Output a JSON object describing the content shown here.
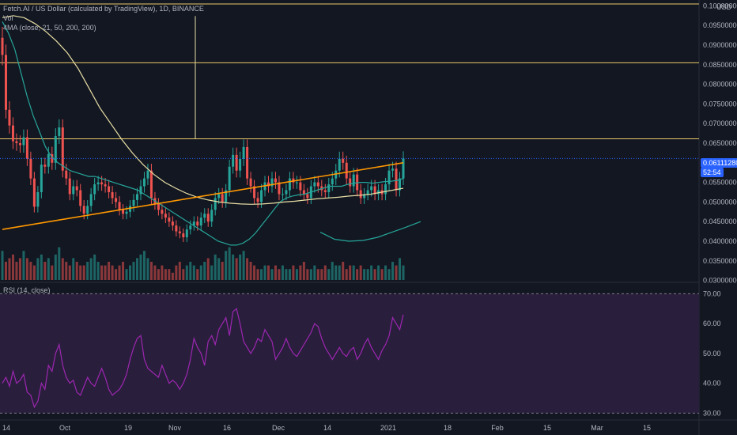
{
  "header": {
    "title": "Fetch.AI / US Dollar (calculated by TradingView), 1D, BINANCE",
    "vol_label": "Vol",
    "ma_label": "4MA (close, 21, 50, 200, 200)",
    "currency": "USD",
    "rsi_label": "RSI (14, close)"
  },
  "price_tag": {
    "value": "0.06111280",
    "countdown": "52:54",
    "color": "#2962ff"
  },
  "colors": {
    "up": "#26a69a",
    "down": "#ef5350",
    "hline": "#e8c96a",
    "ma21": "#26a69a",
    "ma50": "#e8dfa5",
    "ma200": "#ff9800",
    "rsi": "#9c27b0",
    "rsi_bg": "#2a1e3d"
  },
  "chart_data": [
    {
      "type": "candlestick",
      "title": "Fetch.AI / US Dollar (calculated by TradingView), 1D, BINANCE",
      "ylabel": "USD",
      "ylim": [
        0.0289,
        0.1015
      ],
      "y_ticks": [
        "0.03000000",
        "0.03500000",
        "0.04000000",
        "0.04500000",
        "0.05000000",
        "0.05500000",
        "0.06000000",
        "0.06500000",
        "0.07000000",
        "0.07500000",
        "0.08000000",
        "0.08500000",
        "0.09000000",
        "0.09500000",
        "0.10000000"
      ],
      "x_ticks": [
        "14",
        "Oct",
        "19",
        "Nov",
        "16",
        "Dec",
        "14",
        "2021",
        "18",
        "Feb",
        "15",
        "Mar",
        "15"
      ],
      "horizontal_levels": [
        0.1005,
        0.0855,
        0.0661
      ],
      "series": [
        {
          "name": "close",
          "values": [
            0.0875,
            0.0735,
            0.0695,
            0.0655,
            0.065,
            0.0645,
            0.0665,
            0.061,
            0.056,
            0.0488,
            0.0525,
            0.0595,
            0.059,
            0.0622,
            0.06,
            0.0668,
            0.069,
            0.058,
            0.056,
            0.052,
            0.054,
            0.053,
            0.049,
            0.047,
            0.049,
            0.052,
            0.0545,
            0.055,
            0.0545,
            0.054,
            0.0525,
            0.051,
            0.05,
            0.048,
            0.047,
            0.0475,
            0.049,
            0.0505,
            0.052,
            0.054,
            0.056,
            0.058,
            0.051,
            0.0495,
            0.048,
            0.047,
            0.046,
            0.045,
            0.044,
            0.0425,
            0.042,
            0.041,
            0.043,
            0.044,
            0.045,
            0.044,
            0.046,
            0.047,
            0.045,
            0.048,
            0.051,
            0.052,
            0.05,
            0.053,
            0.059,
            0.062,
            0.058,
            0.061,
            0.064,
            0.056,
            0.054,
            0.051,
            0.05,
            0.053,
            0.055,
            0.054,
            0.056,
            0.055,
            0.052,
            0.052,
            0.053,
            0.056,
            0.055,
            0.055,
            0.053,
            0.052,
            0.051,
            0.054,
            0.055,
            0.054,
            0.053,
            0.0525,
            0.0545,
            0.056,
            0.058,
            0.061,
            0.06,
            0.056,
            0.054,
            0.057,
            0.053,
            0.051,
            0.052,
            0.053,
            0.054,
            0.052,
            0.053,
            0.052,
            0.0545,
            0.058,
            0.0585,
            0.053,
            0.056,
            0.0611
          ]
        },
        {
          "name": "MA 21",
          "values": [
            0.096,
            0.093,
            0.089,
            0.083,
            0.077,
            0.072,
            0.068,
            0.064,
            0.0615,
            0.06,
            0.059,
            0.058,
            0.0575,
            0.057,
            0.0565,
            0.0565,
            0.056,
            0.0555,
            0.055,
            0.0545,
            0.054,
            0.0535,
            0.053,
            0.052,
            0.051,
            0.05,
            0.049,
            0.048,
            0.047,
            0.046,
            0.045,
            0.044,
            0.043,
            0.042,
            0.041,
            0.04,
            0.0395,
            0.039,
            0.039,
            0.0395,
            0.0405,
            0.042,
            0.044,
            0.046,
            0.048,
            0.05,
            0.051,
            0.0515,
            0.0518,
            0.052,
            0.0525,
            0.053,
            0.0535,
            0.054,
            0.054,
            0.054,
            0.0545,
            0.0548,
            0.055,
            0.055,
            0.0548,
            0.055,
            0.0552,
            0.0553,
            0.0555,
            0.056
          ]
        },
        {
          "name": "MA 50",
          "values": [
            0.097,
            0.0975,
            0.097,
            0.0955,
            0.0935,
            0.091,
            0.088,
            0.084,
            0.079,
            0.074,
            0.07,
            0.066,
            0.0625,
            0.0595,
            0.057,
            0.055,
            0.0535,
            0.0522,
            0.0512,
            0.0505,
            0.05,
            0.0497,
            0.0495,
            0.0494,
            0.0495,
            0.0497,
            0.05,
            0.0502,
            0.0505,
            0.0508,
            0.051,
            0.0512,
            0.0515,
            0.0517,
            0.052,
            0.0525,
            0.053,
            0.0535
          ]
        },
        {
          "name": "MA 200",
          "values": [
            0.043,
            0.06
          ]
        },
        {
          "name": "MA 200 projection",
          "values": [
            0.0423,
            0.0405,
            0.04,
            0.0402,
            0.041,
            0.0423,
            0.0436,
            0.045
          ]
        }
      ]
    },
    {
      "type": "bar",
      "title": "Vol",
      "values": [
        8,
        5,
        6,
        7,
        5,
        6,
        8,
        6,
        5,
        4,
        6,
        7,
        5,
        6,
        4,
        7,
        9,
        6,
        5,
        4,
        6,
        5,
        4,
        4,
        5,
        6,
        7,
        5,
        4,
        4,
        5,
        4,
        3,
        4,
        5,
        3,
        4,
        5,
        6,
        7,
        8,
        6,
        5,
        4,
        3,
        4,
        3,
        3,
        2,
        4,
        5,
        3,
        4,
        5,
        4,
        3,
        4,
        5,
        6,
        4,
        7,
        6,
        5,
        8,
        9,
        7,
        6,
        7,
        8,
        6,
        5,
        4,
        3,
        3,
        4,
        4,
        3,
        4,
        3,
        4,
        3,
        3,
        4,
        3,
        4,
        5,
        3,
        3,
        4,
        3,
        3,
        4,
        3,
        5,
        4,
        4,
        5,
        3,
        4,
        4,
        3,
        4,
        3,
        3,
        4,
        3,
        4,
        3,
        4,
        3,
        5,
        4,
        6,
        4
      ]
    },
    {
      "type": "line",
      "title": "RSI (14, close)",
      "ylim": [
        28.5,
        72.5
      ],
      "y_ticks": [
        "30.00",
        "40.00",
        "50.00",
        "60.00",
        "70.00"
      ],
      "bands": [
        30,
        70
      ],
      "series": [
        {
          "name": "RSI",
          "values": [
            40,
            42,
            39,
            44,
            40,
            41,
            43,
            37,
            36,
            32,
            34,
            40,
            38,
            46,
            44,
            50,
            53,
            46,
            42,
            40,
            41,
            37,
            36,
            39,
            42,
            40,
            39,
            42,
            45,
            42,
            38,
            36,
            37,
            38,
            40,
            43,
            48,
            52,
            55,
            56,
            48,
            45,
            44,
            43,
            42,
            46,
            43,
            40,
            41,
            40,
            38,
            40,
            43,
            48,
            55,
            52,
            50,
            46,
            54,
            56,
            53,
            58,
            60,
            62,
            56,
            64,
            65,
            60,
            54,
            52,
            50,
            52,
            55,
            54,
            58,
            56,
            54,
            48,
            50,
            52,
            55,
            52,
            50,
            49,
            51,
            53,
            55,
            57,
            60,
            59,
            55,
            52,
            50,
            48,
            50,
            52,
            50,
            49,
            51,
            52,
            48,
            50,
            53,
            55,
            52,
            50,
            48,
            51,
            53,
            56,
            62,
            60,
            58,
            63
          ]
        }
      ]
    }
  ]
}
